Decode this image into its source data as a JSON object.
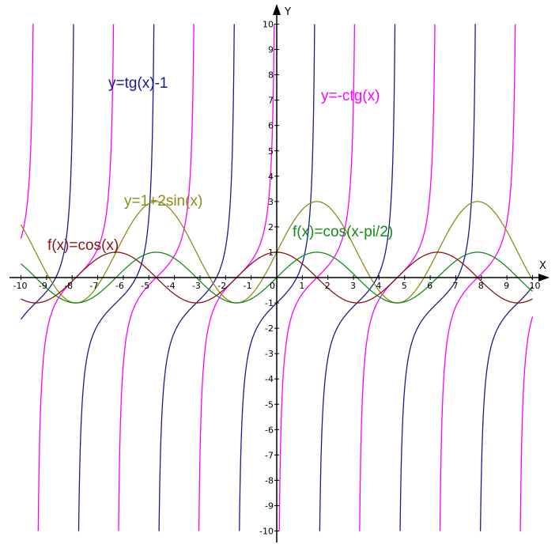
{
  "chart_data": {
    "type": "line",
    "title": "",
    "xlabel": "X",
    "ylabel": "Y",
    "xlim": [
      -10,
      10
    ],
    "ylim": [
      -10,
      10
    ],
    "grid": false,
    "x_tick_labels": [
      "-10",
      "-9",
      "-8",
      "-7",
      "-6",
      "-5",
      "-4",
      "-3",
      "-2",
      "-1",
      "0",
      "1",
      "2",
      "3",
      "4",
      "5",
      "6",
      "7",
      "8",
      "9",
      "10"
    ],
    "y_tick_labels": [
      "10",
      "9",
      "8",
      "7",
      "6",
      "5",
      "4",
      "3",
      "2",
      "1",
      "-1",
      "-2",
      "-3",
      "-4",
      "-5",
      "-6",
      "-7",
      "-8",
      "-9",
      "-10"
    ],
    "series": [
      {
        "name": "y=tg(x)-1",
        "color": "#1a1a8c",
        "formula": "tan(x)-1"
      },
      {
        "name": "y=-ctg(x)",
        "color": "#ff00ff",
        "formula": "-cot(x)"
      },
      {
        "name": "y=1+2sin(x)",
        "color": "#8c8c14",
        "formula": "1+2sin(x)"
      },
      {
        "name": "f(x)=cos(x)",
        "color": "#8c1414",
        "formula": "cos(x)"
      },
      {
        "name": "f(x)=cos(x-pi/2)",
        "color": "#148c14",
        "formula": "cos(x-pi/2)"
      }
    ]
  }
}
